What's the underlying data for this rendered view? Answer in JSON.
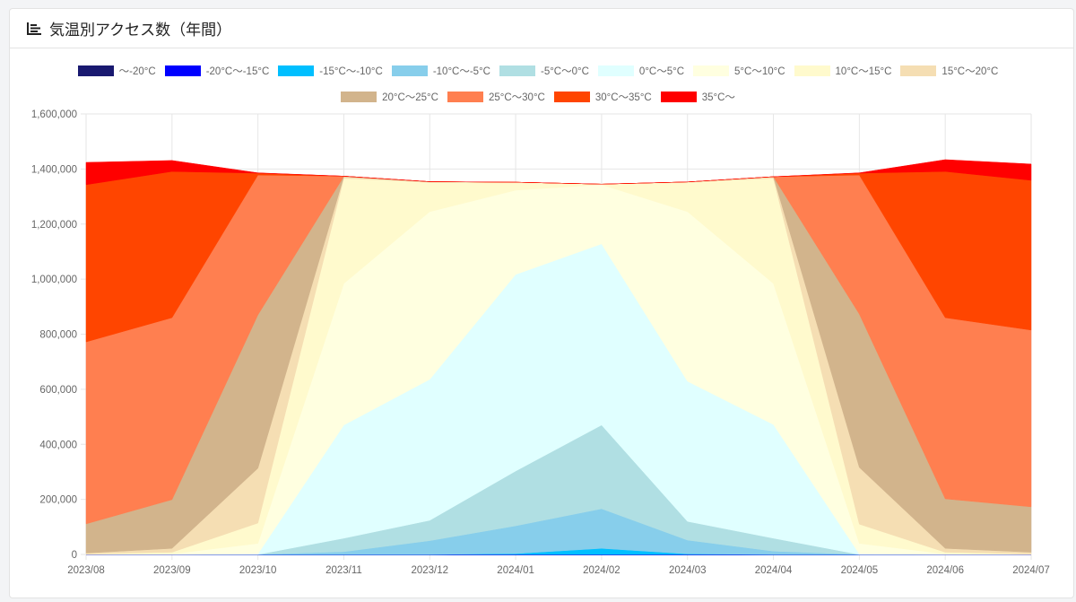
{
  "header": {
    "title": "気温別アクセス数（年間）",
    "icon": "bar-chart-icon"
  },
  "chart_data": {
    "type": "area",
    "stacked": true,
    "title": "気温別アクセス数（年間）",
    "categories": [
      "2023/08",
      "2023/09",
      "2023/10",
      "2023/11",
      "2023/12",
      "2024/01",
      "2024/02",
      "2024/03",
      "2024/04",
      "2024/05",
      "2024/06",
      "2024/07"
    ],
    "ylim": [
      0,
      1600000
    ],
    "yticks": [
      0,
      200000,
      400000,
      600000,
      800000,
      1000000,
      1200000,
      1400000,
      1600000
    ],
    "ytick_labels": [
      "0",
      "200,000",
      "400,000",
      "600,000",
      "800,000",
      "1,000,000",
      "1,200,000",
      "1,400,000",
      "1,600,000"
    ],
    "grid": true,
    "legend_position": "top",
    "series": [
      {
        "name": "〜-20°C",
        "color": "#191970",
        "values": [
          0,
          0,
          0,
          0,
          0,
          0,
          0,
          0,
          0,
          0,
          0,
          0
        ]
      },
      {
        "name": "-20°C〜-15°C",
        "color": "#0000ff",
        "values": [
          0,
          0,
          0,
          0,
          0,
          0,
          0,
          0,
          0,
          0,
          0,
          0
        ]
      },
      {
        "name": "-15°C〜-10°C",
        "color": "#00bfff",
        "values": [
          0,
          0,
          0,
          0,
          0,
          3000,
          22000,
          2000,
          0,
          0,
          0,
          0
        ]
      },
      {
        "name": "-10°C〜-5°C",
        "color": "#87ceeb",
        "values": [
          0,
          0,
          0,
          10000,
          50000,
          101000,
          144000,
          50000,
          12000,
          0,
          0,
          0
        ]
      },
      {
        "name": "-5°C〜0°C",
        "color": "#b0dfe3",
        "values": [
          0,
          0,
          0,
          49000,
          74000,
          199000,
          304000,
          68000,
          47000,
          0,
          0,
          0
        ]
      },
      {
        "name": "0°C〜5°C",
        "color": "#e0ffff",
        "values": [
          0,
          0,
          2000,
          411000,
          512000,
          714000,
          658000,
          509000,
          413000,
          2000,
          0,
          0
        ]
      },
      {
        "name": "5°C〜10°C",
        "color": "#ffffe0",
        "values": [
          0,
          2000,
          38000,
          514000,
          609000,
          306000,
          215000,
          616000,
          512000,
          38000,
          2000,
          0
        ]
      },
      {
        "name": "10°C〜15°C",
        "color": "#fffacd",
        "values": [
          2000,
          6000,
          74000,
          382000,
          107000,
          29000,
          2000,
          107000,
          382000,
          70000,
          6000,
          2000
        ]
      },
      {
        "name": "15°C〜20°C",
        "color": "#f5deb3",
        "values": [
          3000,
          14000,
          199000,
          6000,
          1000,
          0,
          0,
          1000,
          6000,
          206000,
          14000,
          6000
        ]
      },
      {
        "name": "20°C〜25°C",
        "color": "#d2b48c",
        "values": [
          106000,
          177000,
          557000,
          1000,
          1000,
          0,
          0,
          0,
          0,
          557000,
          180000,
          165000
        ]
      },
      {
        "name": "25°C〜30°C",
        "color": "#ff7f50",
        "values": [
          661000,
          661000,
          508000,
          1000,
          0,
          0,
          0,
          0,
          0,
          505000,
          658000,
          642000
        ]
      },
      {
        "name": "30°C〜35°C",
        "color": "#ff4500",
        "values": [
          571000,
          531000,
          7000,
          0,
          0,
          0,
          0,
          0,
          0,
          7000,
          531000,
          544000
        ]
      },
      {
        "name": "35°C〜",
        "color": "#ff0000",
        "values": [
          81000,
          40000,
          1000,
          0,
          0,
          0,
          0,
          0,
          0,
          1000,
          43000,
          59000
        ]
      }
    ]
  }
}
